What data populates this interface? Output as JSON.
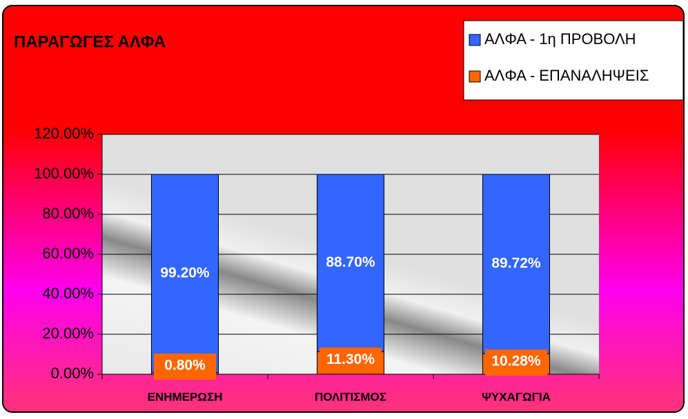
{
  "chart_data": {
    "type": "bar",
    "stacked": true,
    "title": "ΠΑΡΑΓΩΓΕΣ ΑΛΦΑ",
    "categories": [
      "ΕΝΗΜΕΡΩΣΗ",
      "ΠΟΛΙΤΙΣΜΟΣ",
      "ΨΥΧΑΓΩΓΙΑ"
    ],
    "series": [
      {
        "name": "ΑΛΦΑ - 1η ΠΡΟΒΟΛΗ",
        "color": "#3366ff",
        "values": [
          99.2,
          88.7,
          89.72
        ],
        "value_labels": [
          "99.20%",
          "88.70%",
          "89.72%"
        ]
      },
      {
        "name": "ΑΛΦΑ - ΕΠΑΝΑΛΗΨΕΙΣ",
        "color": "#ff6600",
        "values": [
          0.8,
          11.3,
          10.28
        ],
        "value_labels": [
          "0.80%",
          "11.30%",
          "10.28%"
        ]
      }
    ],
    "ylim": [
      0,
      120
    ],
    "yticks": [
      {
        "value": 0,
        "label": "0.00%"
      },
      {
        "value": 20,
        "label": "20.00%"
      },
      {
        "value": 40,
        "label": "40.00%"
      },
      {
        "value": 60,
        "label": "60.00%"
      },
      {
        "value": 80,
        "label": "80.00%"
      },
      {
        "value": 100,
        "label": "100.00%"
      },
      {
        "value": 120,
        "label": "120.00%"
      }
    ],
    "grid": true,
    "legend": "top-right"
  }
}
